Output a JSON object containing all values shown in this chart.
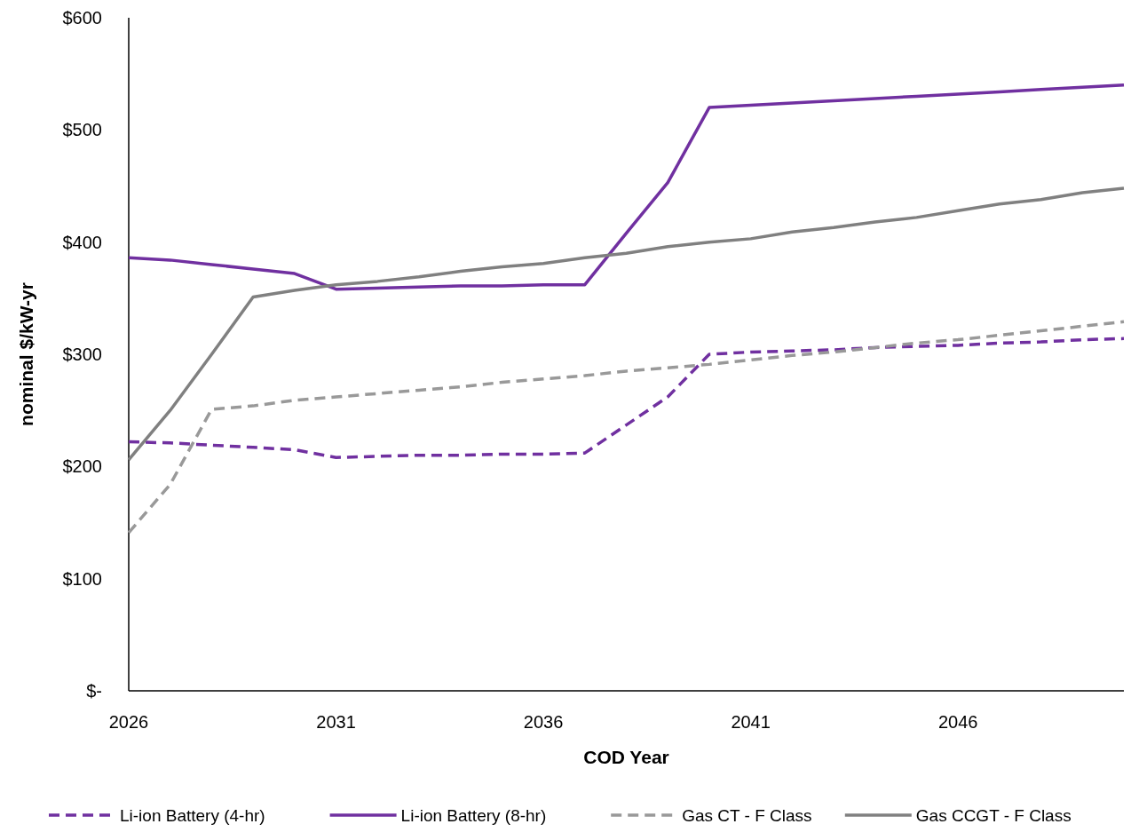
{
  "chart_data": {
    "type": "line",
    "xlabel": "COD Year",
    "ylabel": "nominal $/kW-yr",
    "x": [
      2026,
      2027,
      2028,
      2029,
      2030,
      2031,
      2032,
      2033,
      2034,
      2035,
      2036,
      2037,
      2038,
      2039,
      2040,
      2041,
      2042,
      2043,
      2044,
      2045,
      2046,
      2047,
      2048,
      2049,
      2050
    ],
    "xlim": [
      2026,
      2050
    ],
    "xticks": [
      2026,
      2031,
      2036,
      2041,
      2046
    ],
    "ylim": [
      0,
      600
    ],
    "yticks": [
      {
        "value": 0,
        "label": "$-"
      },
      {
        "value": 100,
        "label": "$100"
      },
      {
        "value": 200,
        "label": "$200"
      },
      {
        "value": 300,
        "label": "$300"
      },
      {
        "value": 400,
        "label": "$400"
      },
      {
        "value": 500,
        "label": "$500"
      },
      {
        "value": 600,
        "label": "$600"
      }
    ],
    "grid": false,
    "legend": "bottom",
    "marker": "none",
    "series": [
      {
        "name": "Li-ion Battery (4-hr)",
        "color": "#7030a0",
        "line_style": "dashed",
        "values": [
          222,
          221,
          219,
          217,
          215,
          208,
          209,
          210,
          210,
          211,
          211,
          212,
          237,
          262,
          300,
          302,
          303,
          304,
          306,
          307,
          308,
          310,
          311,
          313,
          314
        ]
      },
      {
        "name": "Li-ion Battery (8-hr)",
        "color": "#7030a0",
        "line_style": "solid",
        "values": [
          386,
          384,
          380,
          376,
          372,
          358,
          359,
          360,
          361,
          361,
          362,
          362,
          408,
          453,
          520,
          522,
          524,
          526,
          528,
          530,
          532,
          534,
          536,
          538,
          540
        ]
      },
      {
        "name": "Gas CT - F Class",
        "color": "#999999",
        "line_style": "dashed",
        "values": [
          141,
          184,
          251,
          254,
          259,
          262,
          265,
          268,
          271,
          275,
          278,
          281,
          285,
          288,
          291,
          295,
          299,
          302,
          306,
          310,
          313,
          317,
          321,
          325,
          329
        ]
      },
      {
        "name": "Gas CCGT - F Class",
        "color": "#808080",
        "line_style": "solid",
        "values": [
          206,
          250,
          300,
          351,
          357,
          362,
          365,
          369,
          374,
          378,
          381,
          386,
          390,
          396,
          400,
          403,
          409,
          413,
          418,
          422,
          428,
          434,
          438,
          444,
          448
        ]
      }
    ]
  }
}
